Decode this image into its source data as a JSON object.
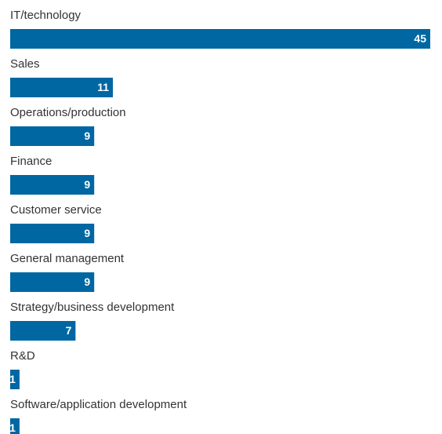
{
  "chart_data": {
    "type": "bar",
    "orientation": "horizontal",
    "categories": [
      "IT/technology",
      "Sales",
      "Operations/production",
      "Finance",
      "Customer service",
      "General management",
      "Strategy/business development",
      "R&D",
      "Software/application development"
    ],
    "values": [
      45,
      11,
      9,
      9,
      9,
      9,
      7,
      1,
      1
    ],
    "color": "#0067a3"
  }
}
